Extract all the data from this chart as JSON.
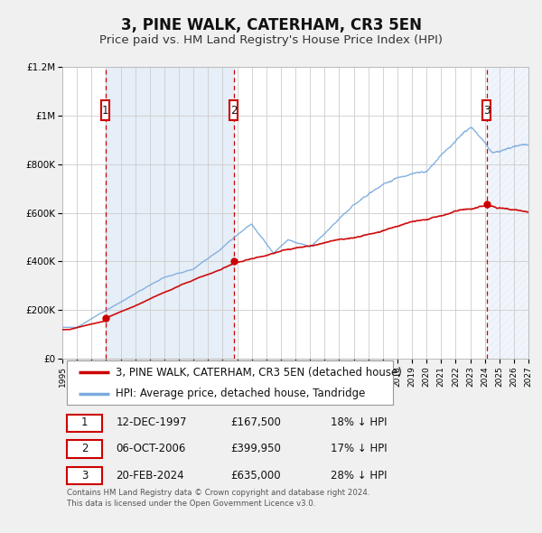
{
  "title": "3, PINE WALK, CATERHAM, CR3 5EN",
  "subtitle": "Price paid vs. HM Land Registry's House Price Index (HPI)",
  "xlim": [
    1995,
    2027
  ],
  "ylim": [
    0,
    1200000
  ],
  "yticks": [
    0,
    200000,
    400000,
    600000,
    800000,
    1000000,
    1200000
  ],
  "ytick_labels": [
    "£0",
    "£200K",
    "£400K",
    "£600K",
    "£800K",
    "£1M",
    "£1.2M"
  ],
  "xticks": [
    1995,
    1996,
    1997,
    1998,
    1999,
    2000,
    2001,
    2002,
    2003,
    2004,
    2005,
    2006,
    2007,
    2008,
    2009,
    2010,
    2011,
    2012,
    2013,
    2014,
    2015,
    2016,
    2017,
    2018,
    2019,
    2020,
    2021,
    2022,
    2023,
    2024,
    2025,
    2026,
    2027
  ],
  "sale_dates_num": [
    1997.95,
    2006.76,
    2024.13
  ],
  "sale_prices": [
    167500,
    399950,
    635000
  ],
  "sale_labels": [
    "1",
    "2",
    "3"
  ],
  "vline_color": "#cc0000",
  "sale_dot_color": "#cc0000",
  "hpi_line_color": "#7aaadd",
  "price_line_color": "#cc0000",
  "shade_color_solid": "#dce8f5",
  "legend_label_price": "3, PINE WALK, CATERHAM, CR3 5EN (detached house)",
  "legend_label_hpi": "HPI: Average price, detached house, Tandridge",
  "table_rows": [
    [
      "1",
      "12-DEC-1997",
      "£167,500",
      "18% ↓ HPI"
    ],
    [
      "2",
      "06-OCT-2006",
      "£399,950",
      "17% ↓ HPI"
    ],
    [
      "3",
      "20-FEB-2024",
      "£635,000",
      "28% ↓ HPI"
    ]
  ],
  "footer": "Contains HM Land Registry data © Crown copyright and database right 2024.\nThis data is licensed under the Open Government Licence v3.0.",
  "background_color": "#f0f0f0",
  "plot_bg_color": "#ffffff",
  "title_fontsize": 12,
  "subtitle_fontsize": 9.5,
  "axis_fontsize": 7.5,
  "legend_fontsize": 8.5
}
